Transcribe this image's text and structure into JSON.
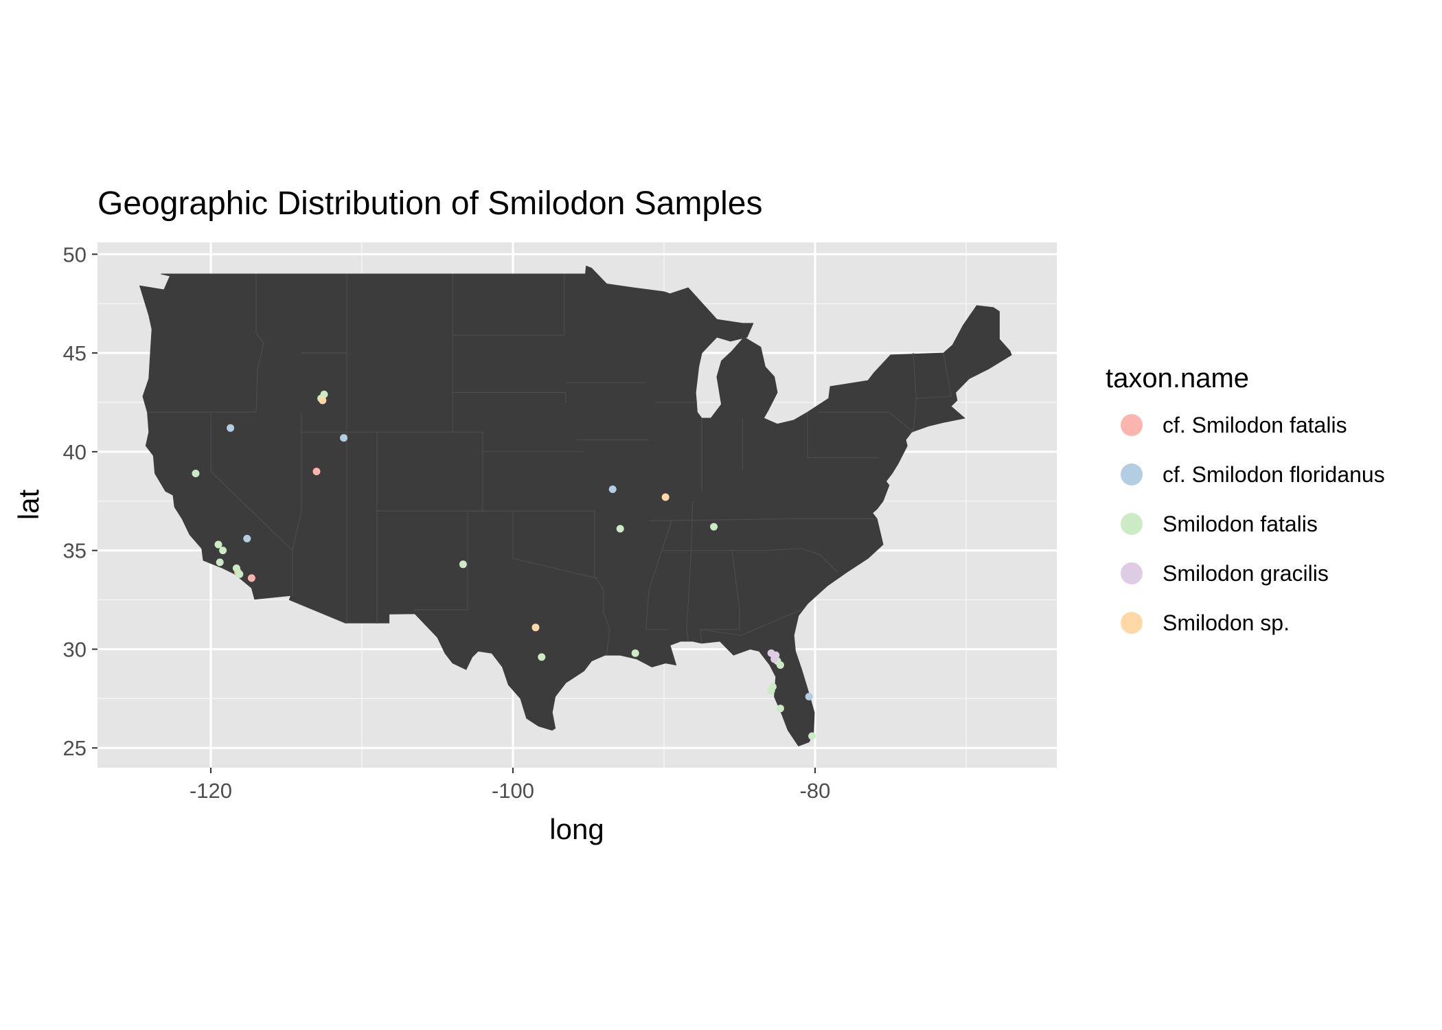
{
  "chart_data": {
    "type": "scatter",
    "title": "Geographic Distribution of Smilodon Samples",
    "xlabel": "long",
    "ylabel": "lat",
    "xlim": [
      -127.5,
      -64.0
    ],
    "ylim": [
      24.0,
      50.6
    ],
    "x_ticks": [
      -120,
      -100,
      -80
    ],
    "x_tick_labels": [
      "-120",
      "-100",
      "-80"
    ],
    "y_ticks": [
      25,
      30,
      35,
      40,
      45,
      50
    ],
    "y_tick_labels": [
      "25",
      "30",
      "35",
      "40",
      "45",
      "50"
    ],
    "x_minor_gridlines": [
      -110,
      -90,
      -70
    ],
    "y_minor_gridlines": [
      27.5,
      32.5,
      37.5,
      42.5,
      47.5
    ],
    "grid": true,
    "background": "contiguous United States map (state outlines)",
    "map_fill_color": "#3c3c3c",
    "panel_background": "#e5e5e5",
    "legend": {
      "title": "taxon.name",
      "position": "right"
    },
    "series": [
      {
        "name": "cf. Smilodon fatalis",
        "color": "#fbb4ae",
        "points": [
          [
            -117.3,
            33.6
          ],
          [
            -113.0,
            39.0
          ],
          [
            -118.2,
            33.9
          ]
        ]
      },
      {
        "name": "cf. Smilodon floridanus",
        "color": "#b3cde3",
        "points": [
          [
            -118.7,
            41.2
          ],
          [
            -111.2,
            40.7
          ],
          [
            -117.6,
            35.6
          ],
          [
            -93.4,
            38.1
          ],
          [
            -80.4,
            27.6
          ]
        ]
      },
      {
        "name": "Smilodon fatalis",
        "color": "#ccebc5",
        "points": [
          [
            -121.0,
            38.9
          ],
          [
            -112.5,
            42.9
          ],
          [
            -112.7,
            42.7
          ],
          [
            -119.5,
            35.3
          ],
          [
            -119.2,
            35.0
          ],
          [
            -119.4,
            34.4
          ],
          [
            -118.3,
            34.1
          ],
          [
            -118.1,
            33.8
          ],
          [
            -103.3,
            34.3
          ],
          [
            -92.9,
            36.1
          ],
          [
            -86.7,
            36.2
          ],
          [
            -98.1,
            29.6
          ],
          [
            -91.9,
            29.8
          ],
          [
            -82.5,
            29.4
          ],
          [
            -82.3,
            29.2
          ],
          [
            -82.8,
            28.1
          ],
          [
            -82.9,
            27.9
          ],
          [
            -82.3,
            27.0
          ],
          [
            -80.2,
            25.6
          ]
        ]
      },
      {
        "name": "Smilodon gracilis",
        "color": "#decbe4",
        "points": [
          [
            -82.9,
            29.8
          ],
          [
            -82.6,
            29.7
          ],
          [
            -82.7,
            29.5
          ]
        ]
      },
      {
        "name": "Smilodon sp.",
        "color": "#fed9a6",
        "points": [
          [
            -112.6,
            42.6
          ],
          [
            -98.5,
            31.1
          ],
          [
            -89.9,
            37.7
          ]
        ]
      }
    ]
  }
}
